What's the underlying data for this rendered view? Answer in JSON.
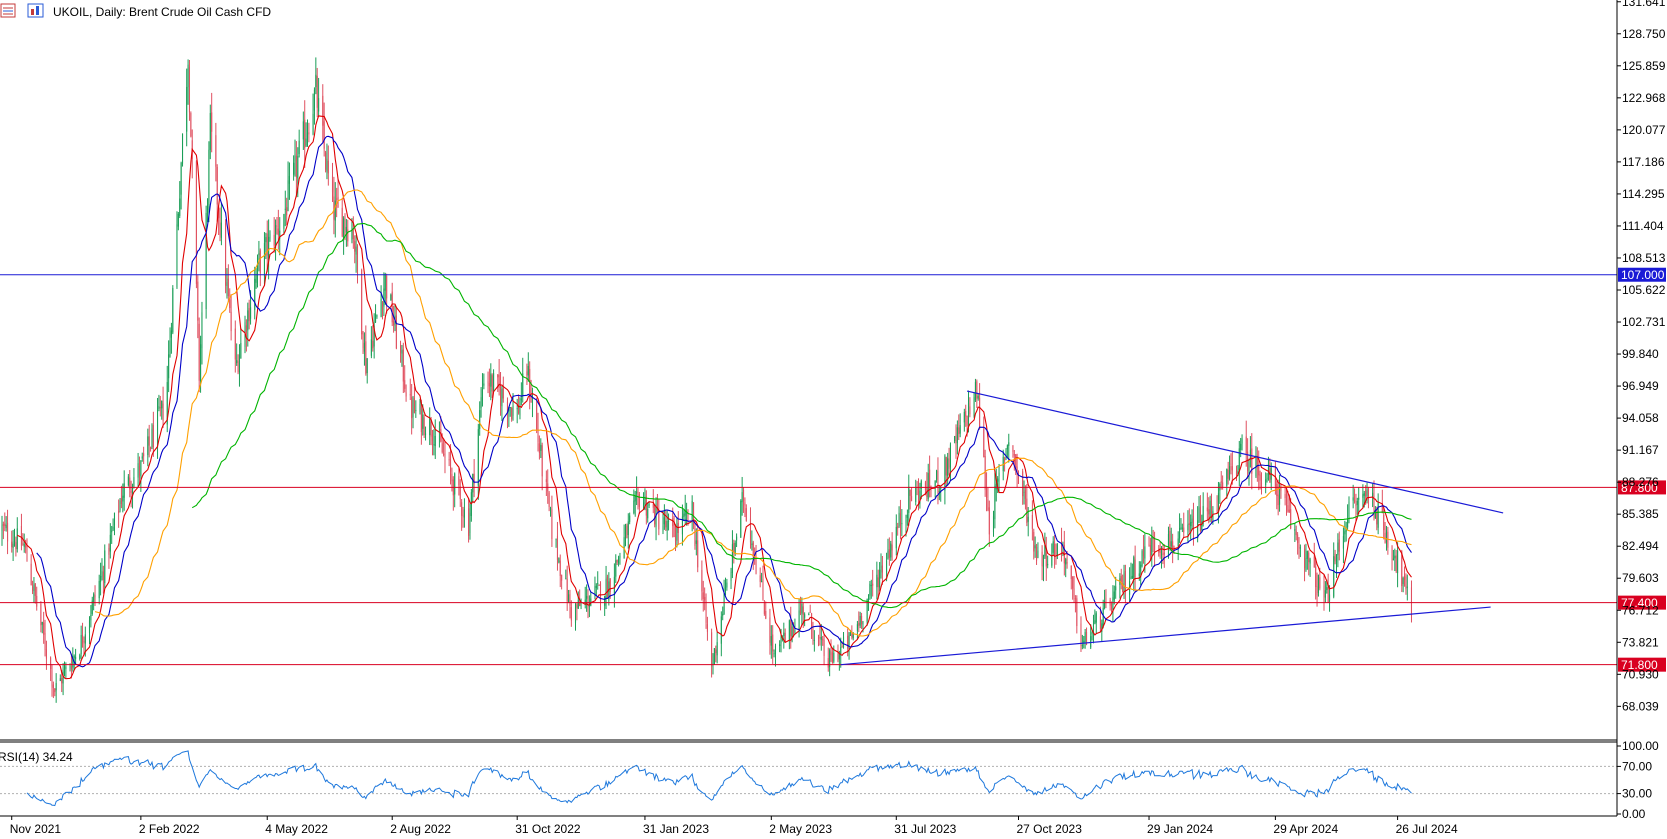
{
  "header": {
    "title": "UKOIL, Daily:  Brent Crude Oil Cash CFD",
    "icons": [
      "bars-icon",
      "chart-type-icon"
    ]
  },
  "chart_data": {
    "type": "candlestick",
    "symbol": "UKOIL",
    "timeframe": "Daily",
    "description": "Brent Crude Oil Cash CFD",
    "y_axis": {
      "ticks": [
        131.641,
        128.75,
        125.859,
        122.968,
        120.077,
        117.186,
        114.295,
        111.404,
        108.513,
        105.622,
        102.731,
        99.84,
        96.949,
        94.058,
        91.167,
        88.276,
        85.385,
        82.494,
        79.603,
        76.712,
        73.821,
        70.93,
        68.039
      ],
      "tick_labels": [
        "131.641",
        "128.750",
        "125.859",
        "122.968",
        "120.077",
        "117.186",
        "114.295",
        "111.404",
        "108.513",
        "105.622",
        "102.731",
        "99.840",
        "96.949",
        "94.058",
        "91.167",
        "88.276",
        "85.385",
        "82.494",
        "79.603",
        "76.712",
        "73.821",
        "70.930",
        "68.039"
      ],
      "ylim": [
        65.0,
        131.8
      ]
    },
    "x_axis": {
      "ticks": [
        {
          "date": "2021-11-01",
          "label": "Nov 2021"
        },
        {
          "date": "2022-02-02",
          "label": "2 Feb 2022"
        },
        {
          "date": "2022-05-04",
          "label": "4 May 2022"
        },
        {
          "date": "2022-08-02",
          "label": "2 Aug 2022"
        },
        {
          "date": "2022-10-31",
          "label": "31 Oct 2022"
        },
        {
          "date": "2023-01-31",
          "label": "31 Jan 2023"
        },
        {
          "date": "2023-05-02",
          "label": "2 May 2023"
        },
        {
          "date": "2023-07-31",
          "label": "31 Jul 2023"
        },
        {
          "date": "2023-10-27",
          "label": "27 Oct 2023"
        },
        {
          "date": "2024-01-29",
          "label": "29 Jan 2024"
        },
        {
          "date": "2024-04-29",
          "label": "29 Apr 2024"
        },
        {
          "date": "2024-07-26",
          "label": "26 Jul 2024"
        }
      ],
      "xlim": [
        "2021-10-25",
        "2024-12-31"
      ]
    },
    "price_path": [
      {
        "date": "2021-10-25",
        "price": 84.0
      },
      {
        "date": "2021-11-10",
        "price": 82.5
      },
      {
        "date": "2021-11-26",
        "price": 73.0
      },
      {
        "date": "2021-12-02",
        "price": 69.5
      },
      {
        "date": "2021-12-20",
        "price": 73.5
      },
      {
        "date": "2022-01-05",
        "price": 80.0
      },
      {
        "date": "2022-01-20",
        "price": 87.5
      },
      {
        "date": "2022-02-02",
        "price": 89.5
      },
      {
        "date": "2022-02-20",
        "price": 95.5
      },
      {
        "date": "2022-03-08",
        "price": 127.0
      },
      {
        "date": "2022-03-16",
        "price": 98.0
      },
      {
        "date": "2022-03-24",
        "price": 120.0
      },
      {
        "date": "2022-04-11",
        "price": 98.5
      },
      {
        "date": "2022-04-28",
        "price": 108.0
      },
      {
        "date": "2022-05-15",
        "price": 112.0
      },
      {
        "date": "2022-06-08",
        "price": 123.5
      },
      {
        "date": "2022-06-20",
        "price": 113.0
      },
      {
        "date": "2022-07-05",
        "price": 111.0
      },
      {
        "date": "2022-07-14",
        "price": 99.0
      },
      {
        "date": "2022-07-28",
        "price": 106.5
      },
      {
        "date": "2022-08-15",
        "price": 95.0
      },
      {
        "date": "2022-09-01",
        "price": 93.0
      },
      {
        "date": "2022-09-26",
        "price": 84.5
      },
      {
        "date": "2022-10-07",
        "price": 98.0
      },
      {
        "date": "2022-10-31",
        "price": 94.5
      },
      {
        "date": "2022-11-07",
        "price": 98.5
      },
      {
        "date": "2022-11-25",
        "price": 84.0
      },
      {
        "date": "2022-12-09",
        "price": 76.5
      },
      {
        "date": "2023-01-05",
        "price": 79.0
      },
      {
        "date": "2023-01-27",
        "price": 87.0
      },
      {
        "date": "2023-02-20",
        "price": 83.5
      },
      {
        "date": "2023-03-06",
        "price": 85.5
      },
      {
        "date": "2023-03-20",
        "price": 71.5
      },
      {
        "date": "2023-04-12",
        "price": 87.0
      },
      {
        "date": "2023-05-04",
        "price": 72.5
      },
      {
        "date": "2023-05-25",
        "price": 77.0
      },
      {
        "date": "2023-06-12",
        "price": 72.0
      },
      {
        "date": "2023-06-28",
        "price": 74.0
      },
      {
        "date": "2023-07-20",
        "price": 80.5
      },
      {
        "date": "2023-08-10",
        "price": 87.0
      },
      {
        "date": "2023-09-01",
        "price": 88.5
      },
      {
        "date": "2023-09-27",
        "price": 96.5
      },
      {
        "date": "2023-10-06",
        "price": 84.5
      },
      {
        "date": "2023-10-20",
        "price": 92.5
      },
      {
        "date": "2023-11-10",
        "price": 81.5
      },
      {
        "date": "2023-11-28",
        "price": 82.5
      },
      {
        "date": "2023-12-12",
        "price": 73.5
      },
      {
        "date": "2024-01-05",
        "price": 78.0
      },
      {
        "date": "2024-01-29",
        "price": 82.5
      },
      {
        "date": "2024-02-20",
        "price": 83.0
      },
      {
        "date": "2024-03-15",
        "price": 86.0
      },
      {
        "date": "2024-04-05",
        "price": 91.0
      },
      {
        "date": "2024-04-29",
        "price": 88.0
      },
      {
        "date": "2024-05-15",
        "price": 83.0
      },
      {
        "date": "2024-06-04",
        "price": 77.5
      },
      {
        "date": "2024-06-20",
        "price": 85.5
      },
      {
        "date": "2024-07-05",
        "price": 87.5
      },
      {
        "date": "2024-07-26",
        "price": 81.0
      },
      {
        "date": "2024-08-05",
        "price": 76.5
      }
    ],
    "moving_averages": [
      {
        "color": "#e00000",
        "period": 10
      },
      {
        "color": "#0000c8",
        "period": 20
      },
      {
        "color": "#ffa000",
        "period": 50
      },
      {
        "color": "#00b400",
        "period": 100
      }
    ],
    "horizontal_levels": [
      {
        "price": 107.0,
        "label": "107.000",
        "color": "#1a1ad6"
      },
      {
        "price": 87.8,
        "label": "87.800",
        "color": "#d90020"
      },
      {
        "price": 77.4,
        "label": "77.400",
        "color": "#d90020"
      },
      {
        "price": 71.8,
        "label": "71.800",
        "color": "#d90020"
      }
    ],
    "trendlines": [
      {
        "color": "#1a1ad6",
        "from": {
          "date": "2023-09-20",
          "price": 96.5
        },
        "to": {
          "date": "2024-10-10",
          "price": 85.5
        }
      },
      {
        "color": "#1a1ad6",
        "from": {
          "date": "2023-06-21",
          "price": 71.8
        },
        "to": {
          "date": "2024-10-01",
          "price": 77.0
        }
      }
    ],
    "indicator": {
      "label": "RSI(14) 34.24",
      "name": "RSI(14)",
      "value": 34.24,
      "ticks": [
        100,
        70,
        30,
        0
      ],
      "tick_labels": [
        "100.00",
        "70.00",
        "30.00",
        "0.00"
      ],
      "levels": [
        70,
        30
      ],
      "color": "#1e78dc"
    }
  }
}
